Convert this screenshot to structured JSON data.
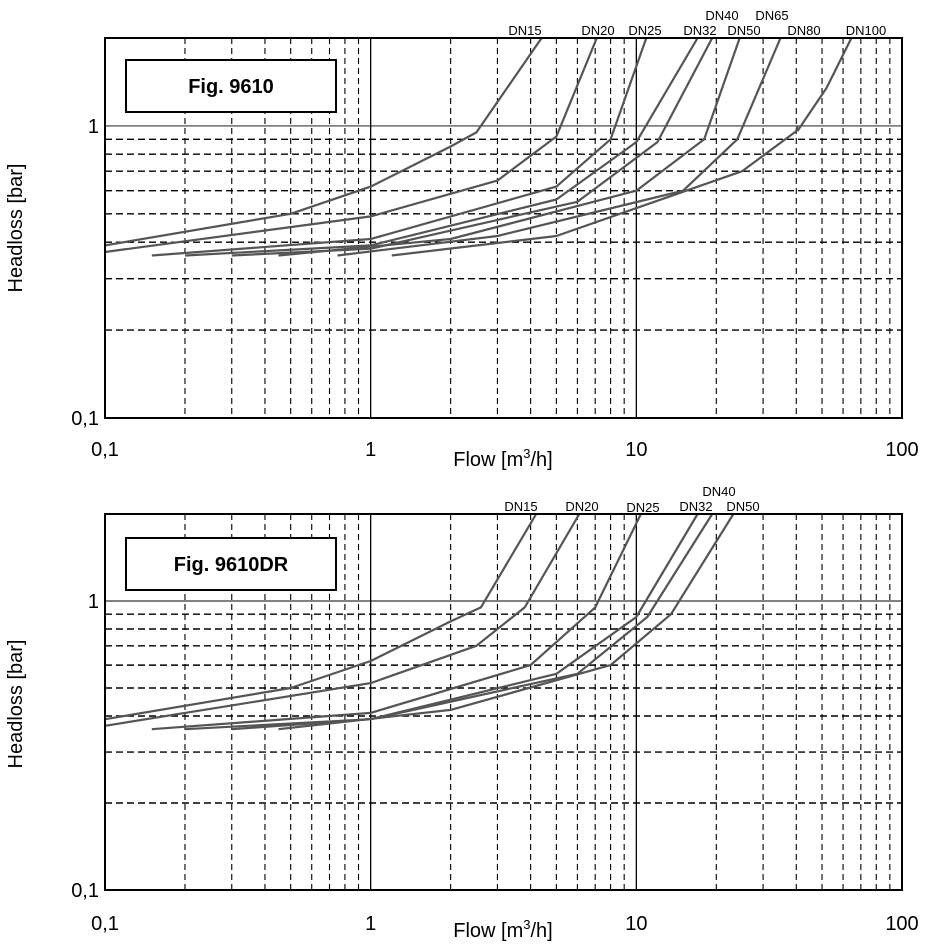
{
  "chart_data": [
    {
      "type": "line",
      "title": "Fig. 9610",
      "xlabel": "Flow [m",
      "xlabel_sup": "3",
      "xlabel_end": "/h]",
      "ylabel": "Headloss [bar]",
      "x_scale": "log",
      "y_scale": "log",
      "xlim": [
        0.1,
        100
      ],
      "ylim": [
        0.1,
        2
      ],
      "x_ticks": [
        {
          "value": 0.1,
          "label": "0,1"
        },
        {
          "value": 1,
          "label": "1"
        },
        {
          "value": 10,
          "label": "10"
        },
        {
          "value": 100,
          "label": "100"
        }
      ],
      "y_ticks": [
        {
          "value": 0.1,
          "label": "0,1"
        },
        {
          "value": 1,
          "label": "1"
        }
      ],
      "grid": "dashed minor, solid major",
      "series": [
        {
          "name": "DN15",
          "x": [
            0.1,
            0.5,
            1,
            2,
            2.5,
            4.4
          ],
          "y": [
            0.39,
            0.5,
            0.62,
            0.85,
            0.95,
            2
          ]
        },
        {
          "name": "DN20",
          "x": [
            0.1,
            1,
            3,
            5,
            7.1
          ],
          "y": [
            0.37,
            0.49,
            0.65,
            0.92,
            2
          ]
        },
        {
          "name": "DN25",
          "x": [
            0.15,
            1,
            5,
            8,
            10.9
          ],
          "y": [
            0.36,
            0.41,
            0.62,
            0.9,
            2
          ]
        },
        {
          "name": "DN32",
          "x": [
            0.2,
            1,
            5,
            10,
            17
          ],
          "y": [
            0.36,
            0.39,
            0.56,
            0.88,
            2
          ]
        },
        {
          "name": "DN40",
          "x": [
            0.3,
            1,
            6,
            12,
            19.3
          ],
          "y": [
            0.36,
            0.38,
            0.55,
            0.88,
            2
          ]
        },
        {
          "name": "DN50",
          "x": [
            0.45,
            2,
            10,
            18,
            24.5
          ],
          "y": [
            0.36,
            0.41,
            0.6,
            0.9,
            2
          ]
        },
        {
          "name": "DN65",
          "x": [
            0.75,
            3,
            15,
            24,
            34.9
          ],
          "y": [
            0.36,
            0.42,
            0.6,
            0.9,
            2
          ]
        },
        {
          "name": "DN80",
          "x": [
            1.2,
            5,
            25,
            40,
            40.4
          ],
          "y": [
            0.36,
            0.42,
            0.7,
            0.96,
            1
          ]
        },
        {
          "name": "DN100",
          "x": [
            40.4,
            52,
            64.5
          ],
          "y": [
            0.96,
            1.35,
            2
          ]
        }
      ],
      "dn_labels": [
        "DN15",
        "DN20",
        "DN25",
        "DN32",
        "DN40",
        "DN50",
        "DN65",
        "DN80",
        "DN100"
      ]
    },
    {
      "type": "line",
      "title": "Fig. 9610DR",
      "xlabel": "Flow [m",
      "xlabel_sup": "3",
      "xlabel_end": "/h]",
      "ylabel": "Headloss [bar]",
      "x_scale": "log",
      "y_scale": "log",
      "xlim": [
        0.1,
        100
      ],
      "ylim": [
        0.1,
        2
      ],
      "x_ticks": [
        {
          "value": 0.1,
          "label": "0,1"
        },
        {
          "value": 1,
          "label": "1"
        },
        {
          "value": 10,
          "label": "10"
        },
        {
          "value": 100,
          "label": "100"
        }
      ],
      "y_ticks": [
        {
          "value": 0.1,
          "label": "0,1"
        },
        {
          "value": 1,
          "label": "1"
        }
      ],
      "grid": "dashed minor, solid major",
      "series": [
        {
          "name": "DN15",
          "x": [
            0.1,
            0.5,
            1,
            2,
            2.6,
            4.2
          ],
          "y": [
            0.39,
            0.5,
            0.62,
            0.85,
            0.95,
            2
          ]
        },
        {
          "name": "DN20",
          "x": [
            0.1,
            1,
            2.5,
            3.8,
            6.1
          ],
          "y": [
            0.37,
            0.52,
            0.7,
            0.95,
            2
          ]
        },
        {
          "name": "DN25",
          "x": [
            0.15,
            1,
            4,
            7,
            10.4
          ],
          "y": [
            0.36,
            0.41,
            0.6,
            0.95,
            2
          ]
        },
        {
          "name": "DN32",
          "x": [
            0.2,
            1,
            5,
            10,
            17
          ],
          "y": [
            0.36,
            0.39,
            0.56,
            0.88,
            2
          ]
        },
        {
          "name": "DN40",
          "x": [
            0.3,
            1,
            6,
            11,
            19.3
          ],
          "y": [
            0.36,
            0.39,
            0.56,
            0.88,
            2
          ]
        },
        {
          "name": "DN50",
          "x": [
            0.45,
            2,
            8,
            13.5,
            23.2
          ],
          "y": [
            0.36,
            0.42,
            0.6,
            0.9,
            2
          ]
        }
      ],
      "dn_labels": [
        "DN15",
        "DN20",
        "DN25",
        "DN32",
        "DN40",
        "DN50"
      ]
    }
  ]
}
